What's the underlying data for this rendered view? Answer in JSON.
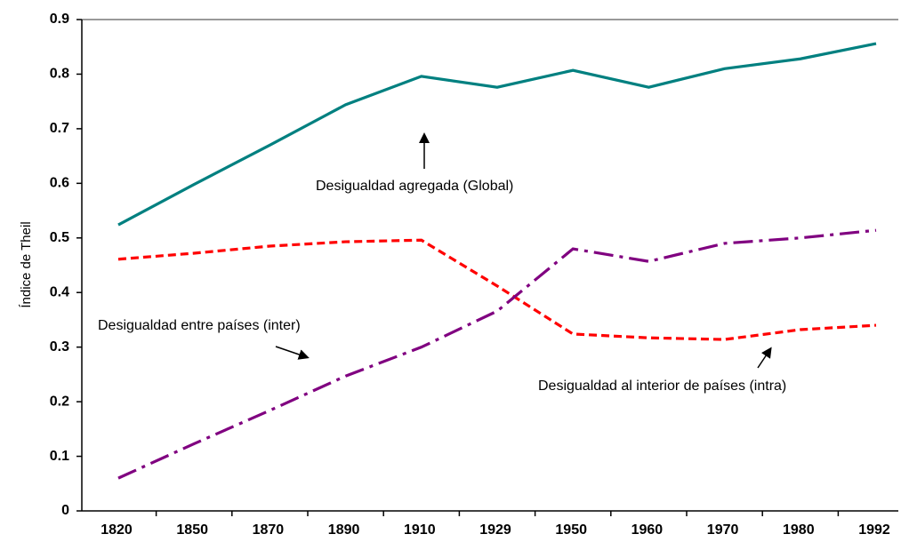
{
  "chart_data": {
    "type": "line",
    "ylabel": "Índice de Theil",
    "categories": [
      "1820",
      "1850",
      "1870",
      "1890",
      "1910",
      "1929",
      "1950",
      "1960",
      "1970",
      "1980",
      "1992"
    ],
    "series": [
      {
        "name": "Desigualdad agregada (Global)",
        "color": "#008080",
        "linestyle": "solid",
        "values": [
          0.524,
          0.598,
          0.67,
          0.744,
          0.796,
          0.776,
          0.807,
          0.776,
          0.81,
          0.828,
          0.856
        ]
      },
      {
        "name": "Desigualdad al interior de países (intra)",
        "color": "#ff0000",
        "linestyle": "dashed",
        "values": [
          0.461,
          0.472,
          0.485,
          0.493,
          0.496,
          0.412,
          0.324,
          0.317,
          0.314,
          0.332,
          0.34
        ]
      },
      {
        "name": "Desigualdad entre países (inter)",
        "color": "#800080",
        "linestyle": "dashdot",
        "values": [
          0.06,
          0.123,
          0.184,
          0.247,
          0.3,
          0.366,
          0.48,
          0.457,
          0.49,
          0.5,
          0.514
        ]
      }
    ],
    "ylim": [
      0,
      0.9
    ],
    "yticks": [
      0,
      0.1,
      0.2,
      0.3,
      0.4,
      0.5,
      0.6,
      0.7,
      0.8,
      0.9
    ]
  }
}
